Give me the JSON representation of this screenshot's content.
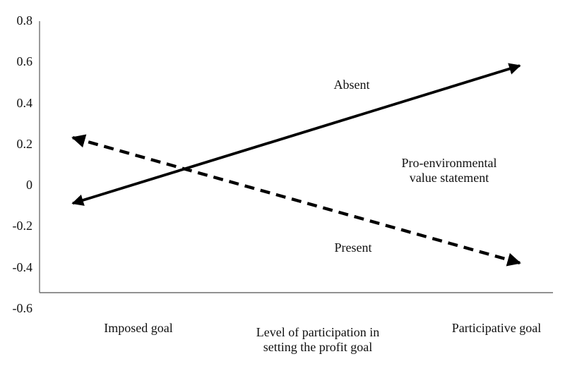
{
  "chart_data": {
    "type": "line",
    "title": "",
    "categories": [
      "Imposed goal",
      "Participative goal"
    ],
    "series": [
      {
        "name": "Absent",
        "style": "solid",
        "values": [
          -0.09,
          0.58
        ]
      },
      {
        "name": "Present",
        "style": "dashed",
        "values": [
          0.23,
          -0.38
        ]
      }
    ],
    "ylim": [
      -0.6,
      0.8
    ],
    "ytick_step": 0.2,
    "ytick_labels": [
      "0.8",
      "0.6",
      "0.4",
      "0.2",
      "0",
      "-0.2",
      "-0.4",
      "-0.6"
    ],
    "xlabel": "Level of participation in setting the profit goal",
    "xlabel_lines": [
      "Level of participation in",
      "setting the profit goal"
    ],
    "moderator_label": "Pro-environmental value statement",
    "moderator_label_lines": [
      "Pro-environmental",
      "value statement"
    ],
    "grid": false,
    "legend_position": "in-plot-annotations",
    "arrowheads": "both-ends",
    "colors": {
      "line": "#000000",
      "axis": "#6f6f6f",
      "text": "#111111",
      "background": "#ffffff"
    }
  }
}
